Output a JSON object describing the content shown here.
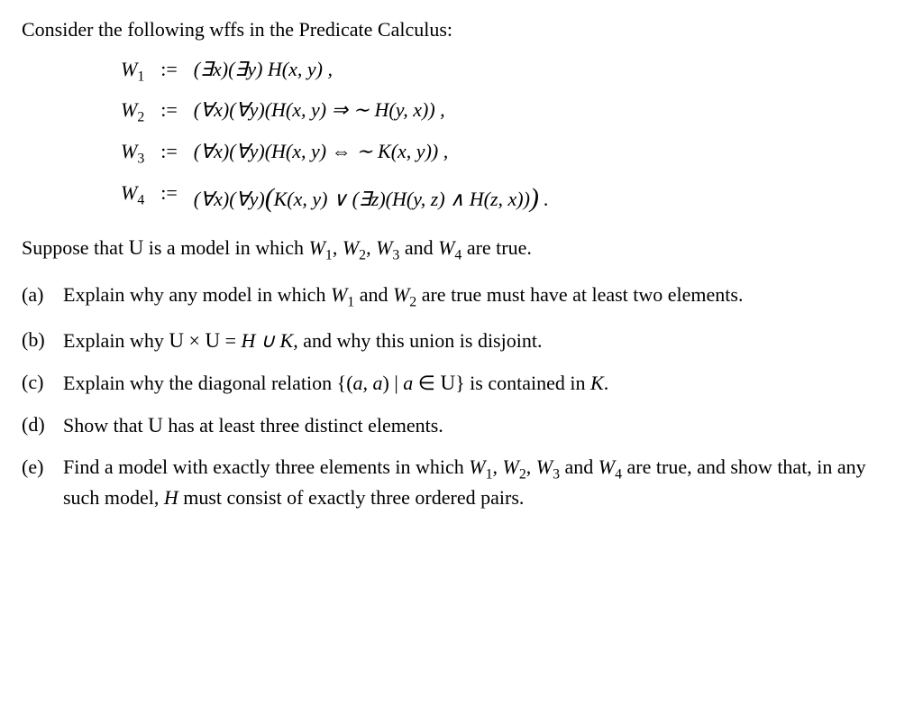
{
  "intro": "Consider the following wffs in the Predicate Calculus:",
  "eqn": {
    "assign": ":=",
    "w1": {
      "lhs_letter": "W",
      "lhs_sub": "1",
      "rhs": "(∃x)(∃y) H(x, y)  ,"
    },
    "w2": {
      "lhs_letter": "W",
      "lhs_sub": "2",
      "rhs": "(∀x)(∀y)(H(x, y) ⇒ ∼ H(y, x))  ,"
    },
    "w3": {
      "lhs_letter": "W",
      "lhs_sub": "3",
      "rhs": "(∀x)(∀y)(H(x, y) ⇔ ∼ K(x, y))  ,"
    },
    "w4": {
      "lhs_letter": "W",
      "lhs_sub": "4",
      "rhs_pre": "(∀x)(∀y)",
      "rhs_open": "(",
      "rhs_mid": "K(x, y) ∨ (∃z)(H(y, z) ∧ H(z, x))",
      "rhs_close": ")",
      "rhs_post": "  ."
    }
  },
  "suppose": {
    "pre": "Suppose that ",
    "U": "U",
    "mid1": " is a model in which ",
    "w1": "W",
    "s1": "1",
    "c1": ", ",
    "w2": "W",
    "s2": "2",
    "c2": ", ",
    "w3": "W",
    "s3": "3",
    "and": " and ",
    "w4": "W",
    "s4": "4",
    "post": " are true."
  },
  "parts": {
    "a": {
      "label": "(a)",
      "t1": "Explain why any model in which ",
      "w1": "W",
      "s1": "1",
      "and": " and ",
      "w2": "W",
      "s2": "2",
      "t2": " are true must have at least two elements."
    },
    "b": {
      "label": "(b)",
      "t1": "Explain why ",
      "U1": "U",
      "times": " × ",
      "U2": "U",
      "eqtxt": " = ",
      "HUH": "H ∪ K",
      "t2": ", and why this union is disjoint."
    },
    "c": {
      "label": "(c)",
      "t1": "Explain why the diagonal relation {(",
      "aa": "a, a",
      "t1b": ") | ",
      "a2": "a",
      "el": " ∈ ",
      "U": "U",
      "t2": "} is contained in ",
      "K": "K",
      "dot": "."
    },
    "d": {
      "label": "(d)",
      "t1": "Show that ",
      "U": "U",
      "t2": " has at least three distinct elements."
    },
    "e": {
      "label": "(e)",
      "t1": "Find a model with exactly three elements in which ",
      "w1": "W",
      "s1": "1",
      "c1": ", ",
      "w2": "W",
      "s2": "2",
      "c2": ", ",
      "w3": "W",
      "s3": "3",
      "and": " and ",
      "w4": "W",
      "s4": "4",
      "t2": " are true, and show that, in any such model, ",
      "H": "H",
      "t3": " must consist of exactly three ordered pairs."
    }
  }
}
